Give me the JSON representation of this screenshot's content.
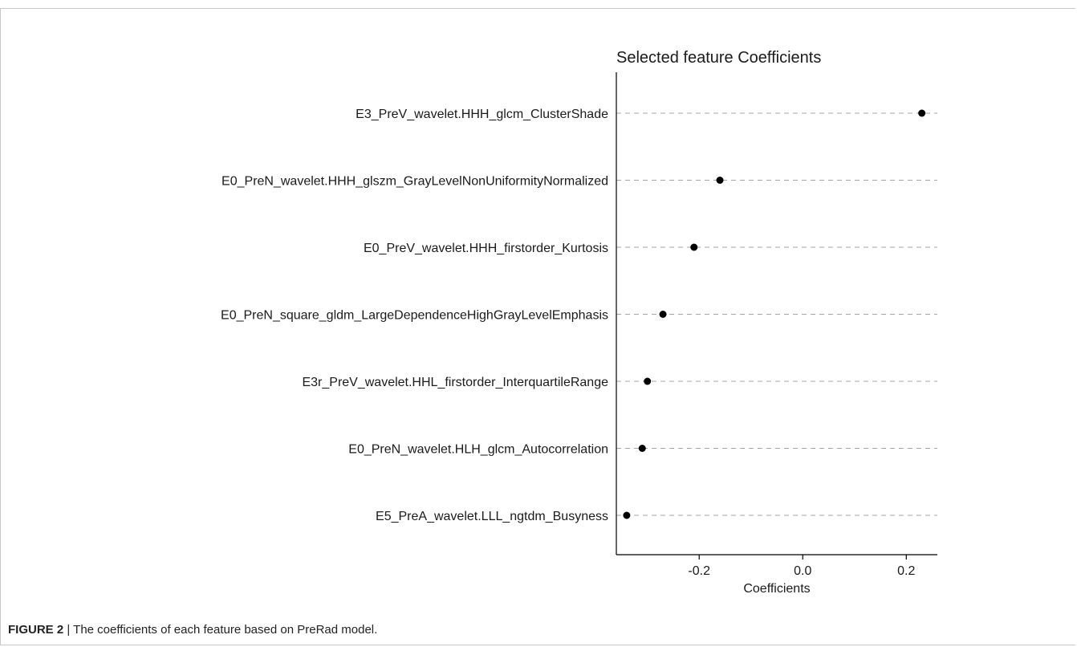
{
  "figure": {
    "label": "FIGURE 2",
    "separator": " | ",
    "caption": "The coefficients of each feature based on PreRad model."
  },
  "chart_data": {
    "type": "scatter",
    "title": "Selected feature Coefficients",
    "xlabel": "Coefficients",
    "ylabel": "",
    "xlim": [
      -0.36,
      0.26
    ],
    "xticks": [
      -0.2,
      0.0,
      0.2
    ],
    "xtick_labels": [
      "-0.2",
      "0.0",
      "0.2"
    ],
    "grid": "horizontal dashed",
    "legend": "none",
    "point_color": "#000000",
    "gridline_color": "#a6a6a6",
    "points": [
      {
        "feature": "E3_PreV_wavelet.HHH_glcm_ClusterShade",
        "value": 0.23
      },
      {
        "feature": "E0_PreN_wavelet.HHH_glszm_GrayLevelNonUniformityNormalized",
        "value": -0.16
      },
      {
        "feature": "E0_PreV_wavelet.HHH_firstorder_Kurtosis",
        "value": -0.21
      },
      {
        "feature": "E0_PreN_square_gldm_LargeDependenceHighGrayLevelEmphasis",
        "value": -0.27
      },
      {
        "feature": "E3r_PreV_wavelet.HHL_firstorder_InterquartileRange",
        "value": -0.3
      },
      {
        "feature": "E0_PreN_wavelet.HLH_glcm_Autocorrelation",
        "value": -0.31
      },
      {
        "feature": "E5_PreA_wavelet.LLL_ngtdm_Busyness",
        "value": -0.34
      }
    ]
  }
}
